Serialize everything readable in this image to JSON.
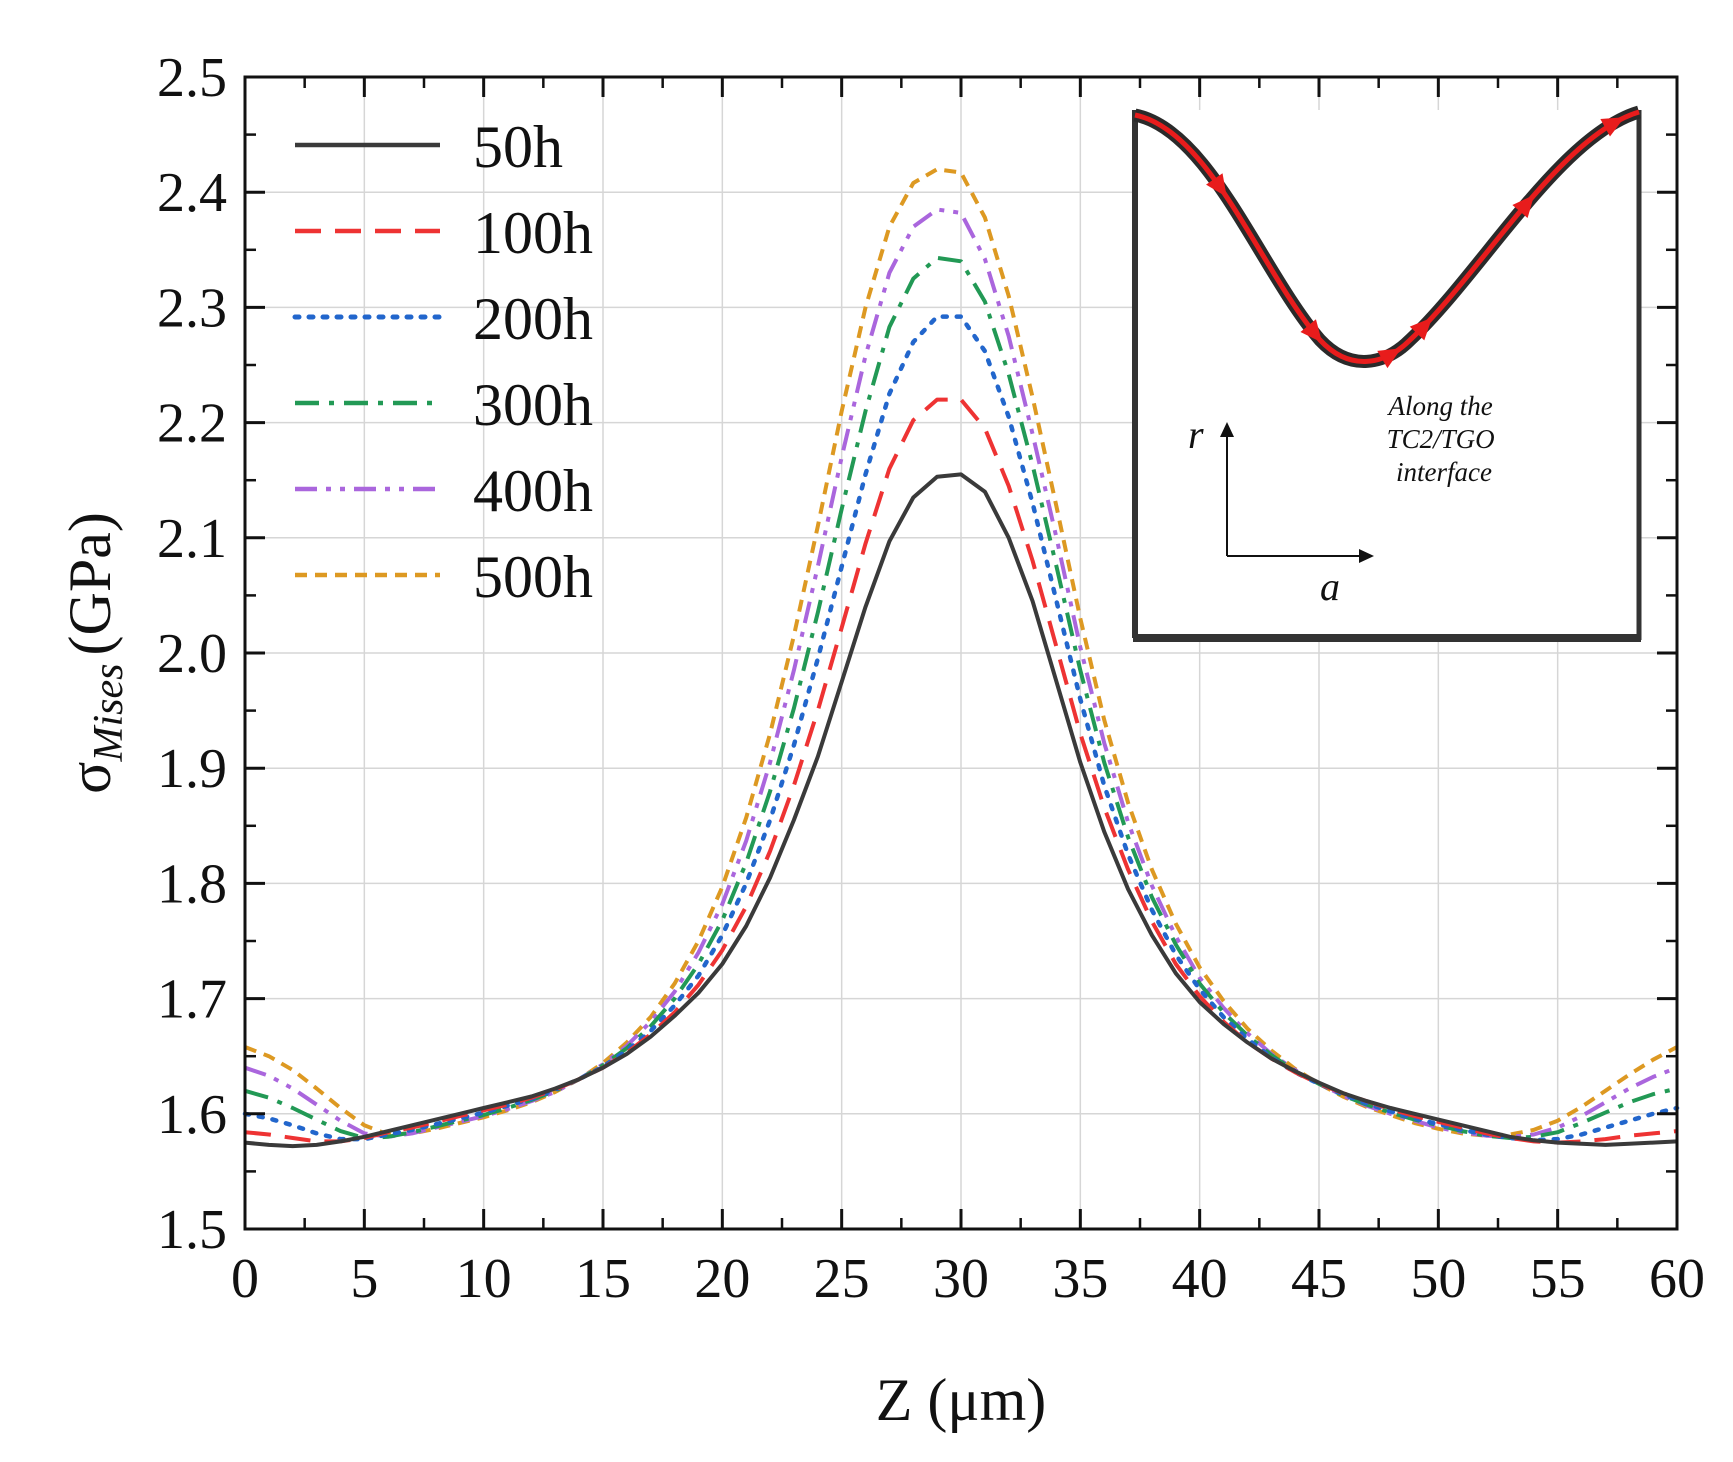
{
  "chart_data": {
    "type": "line",
    "title": "",
    "xlabel": "Z (μm)",
    "ylabel_symbol": "σ",
    "ylabel_subscript": "Mises",
    "ylabel_unit": "(GPa)",
    "xlim": [
      0,
      60
    ],
    "ylim": [
      1.5,
      2.5
    ],
    "xticks": [
      0,
      5,
      10,
      15,
      20,
      25,
      30,
      35,
      40,
      45,
      50,
      55,
      60
    ],
    "yticks": [
      "1.5",
      "1.6",
      "1.7",
      "1.8",
      "1.9",
      "2.0",
      "2.1",
      "2.2",
      "2.3",
      "2.4",
      "2.5"
    ],
    "grid": true,
    "legend_position": "top-left",
    "x": [
      0,
      1,
      2,
      3,
      4,
      5,
      6,
      7,
      8,
      9,
      10,
      11,
      12,
      13,
      14,
      15,
      16,
      17,
      18,
      19,
      20,
      21,
      22,
      23,
      24,
      25,
      26,
      27,
      28,
      29,
      30,
      31,
      32,
      33,
      34,
      35,
      36,
      37,
      38,
      39,
      40,
      41,
      42,
      43,
      44,
      45,
      46,
      47,
      48,
      49,
      50,
      51,
      52,
      53,
      54,
      55,
      56,
      57,
      58,
      59,
      60
    ],
    "series": [
      {
        "name": "50h",
        "color": "#3a3a3a",
        "dash": "solid",
        "values": [
          1.575,
          1.573,
          1.572,
          1.573,
          1.576,
          1.58,
          1.585,
          1.59,
          1.595,
          1.6,
          1.605,
          1.61,
          1.615,
          1.622,
          1.63,
          1.64,
          1.652,
          1.667,
          1.685,
          1.705,
          1.73,
          1.763,
          1.805,
          1.855,
          1.91,
          1.975,
          2.04,
          2.097,
          2.135,
          2.153,
          2.155,
          2.14,
          2.1,
          2.045,
          1.975,
          1.905,
          1.845,
          1.795,
          1.755,
          1.722,
          1.697,
          1.678,
          1.662,
          1.648,
          1.637,
          1.627,
          1.618,
          1.611,
          1.605,
          1.6,
          1.595,
          1.59,
          1.585,
          1.58,
          1.577,
          1.575,
          1.574,
          1.573,
          1.574,
          1.575,
          1.576
        ]
      },
      {
        "name": "100h",
        "color": "#ee3333",
        "dash": "dashed",
        "values": [
          1.584,
          1.582,
          1.579,
          1.576,
          1.576,
          1.579,
          1.584,
          1.588,
          1.593,
          1.598,
          1.603,
          1.608,
          1.614,
          1.621,
          1.63,
          1.64,
          1.653,
          1.669,
          1.688,
          1.712,
          1.742,
          1.78,
          1.828,
          1.885,
          1.95,
          2.022,
          2.095,
          2.16,
          2.202,
          2.22,
          2.22,
          2.195,
          2.145,
          2.08,
          2.005,
          1.93,
          1.866,
          1.812,
          1.767,
          1.73,
          1.702,
          1.68,
          1.662,
          1.648,
          1.636,
          1.626,
          1.618,
          1.611,
          1.604,
          1.598,
          1.593,
          1.588,
          1.583,
          1.579,
          1.576,
          1.575,
          1.576,
          1.578,
          1.581,
          1.583,
          1.585
        ]
      },
      {
        "name": "200h",
        "color": "#2266cc",
        "dash": "dotted",
        "values": [
          1.6,
          1.596,
          1.59,
          1.583,
          1.578,
          1.578,
          1.582,
          1.586,
          1.591,
          1.596,
          1.601,
          1.607,
          1.613,
          1.621,
          1.63,
          1.641,
          1.655,
          1.672,
          1.694,
          1.72,
          1.755,
          1.8,
          1.855,
          1.92,
          1.995,
          2.075,
          2.155,
          2.225,
          2.27,
          2.292,
          2.292,
          2.262,
          2.205,
          2.13,
          2.045,
          1.96,
          1.885,
          1.825,
          1.777,
          1.738,
          1.708,
          1.684,
          1.665,
          1.649,
          1.636,
          1.626,
          1.617,
          1.609,
          1.602,
          1.596,
          1.591,
          1.586,
          1.582,
          1.579,
          1.577,
          1.578,
          1.582,
          1.588,
          1.594,
          1.6,
          1.605
        ]
      },
      {
        "name": "300h",
        "color": "#229955",
        "dash": "dashdot",
        "values": [
          1.62,
          1.614,
          1.605,
          1.595,
          1.585,
          1.579,
          1.58,
          1.584,
          1.589,
          1.594,
          1.599,
          1.605,
          1.612,
          1.62,
          1.63,
          1.642,
          1.657,
          1.676,
          1.7,
          1.73,
          1.768,
          1.818,
          1.88,
          1.952,
          2.035,
          2.125,
          2.21,
          2.283,
          2.325,
          2.343,
          2.34,
          2.305,
          2.242,
          2.163,
          2.075,
          1.985,
          1.905,
          1.84,
          1.788,
          1.747,
          1.713,
          1.688,
          1.668,
          1.651,
          1.637,
          1.626,
          1.616,
          1.608,
          1.601,
          1.595,
          1.59,
          1.585,
          1.581,
          1.579,
          1.58,
          1.584,
          1.592,
          1.601,
          1.61,
          1.617,
          1.622
        ]
      },
      {
        "name": "400h",
        "color": "#aa66dd",
        "dash": "dashdotdot",
        "values": [
          1.64,
          1.633,
          1.622,
          1.608,
          1.594,
          1.583,
          1.58,
          1.583,
          1.588,
          1.593,
          1.598,
          1.604,
          1.611,
          1.619,
          1.63,
          1.643,
          1.659,
          1.68,
          1.706,
          1.74,
          1.782,
          1.837,
          1.905,
          1.985,
          2.075,
          2.17,
          2.258,
          2.33,
          2.37,
          2.385,
          2.382,
          2.342,
          2.275,
          2.19,
          2.1,
          2.005,
          1.922,
          1.853,
          1.798,
          1.754,
          1.718,
          1.692,
          1.67,
          1.652,
          1.638,
          1.626,
          1.616,
          1.607,
          1.6,
          1.594,
          1.588,
          1.584,
          1.581,
          1.58,
          1.582,
          1.588,
          1.598,
          1.61,
          1.622,
          1.632,
          1.64
        ]
      },
      {
        "name": "500h",
        "color": "#dd9922",
        "dash": "shortdash",
        "values": [
          1.658,
          1.65,
          1.638,
          1.622,
          1.605,
          1.59,
          1.582,
          1.583,
          1.587,
          1.592,
          1.597,
          1.603,
          1.61,
          1.619,
          1.63,
          1.644,
          1.662,
          1.684,
          1.713,
          1.75,
          1.797,
          1.857,
          1.93,
          2.015,
          2.11,
          2.21,
          2.3,
          2.37,
          2.408,
          2.42,
          2.417,
          2.378,
          2.31,
          2.222,
          2.127,
          2.03,
          1.942,
          1.87,
          1.812,
          1.765,
          1.727,
          1.698,
          1.674,
          1.655,
          1.639,
          1.626,
          1.615,
          1.606,
          1.599,
          1.592,
          1.587,
          1.583,
          1.581,
          1.582,
          1.586,
          1.594,
          1.606,
          1.62,
          1.634,
          1.647,
          1.658
        ]
      }
    ],
    "inset": {
      "caption_lines": [
        "Along the",
        "TC2/TGO",
        "interface"
      ],
      "axis_label_vertical": "r",
      "axis_label_horizontal": "a",
      "path_color": "#e81c1c"
    }
  }
}
